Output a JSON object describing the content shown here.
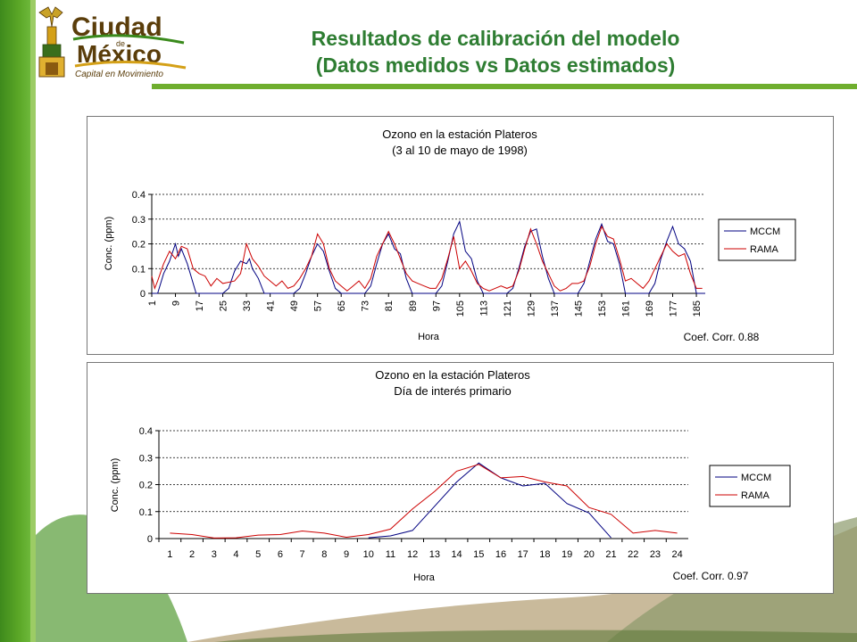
{
  "slide": {
    "title_line1": "Resultados de calibración del modelo",
    "title_line2": "(Datos medidos vs Datos estimados)",
    "logo": {
      "line1": "Ciudad",
      "line2": "de",
      "line3": "México",
      "tagline": "Capital en Movimiento"
    }
  },
  "colors": {
    "mccm": "#000080",
    "rama": "#cc0000",
    "title": "#2e7d32",
    "green": "#5aa626"
  },
  "chart_data": [
    {
      "type": "line",
      "title": "Ozono en la estación Plateros",
      "subtitle": "(3 al 10 de mayo de 1998)",
      "xlabel": "Hora",
      "ylabel": "Conc. (ppm)",
      "ylim": [
        0,
        0.4
      ],
      "yticks": [
        "0",
        "0.1",
        "0.2",
        "0.3",
        "0.4"
      ],
      "xlim": [
        1,
        188
      ],
      "xticks": [
        1,
        9,
        17,
        25,
        33,
        41,
        49,
        57,
        65,
        73,
        81,
        89,
        97,
        105,
        113,
        121,
        129,
        137,
        145,
        153,
        161,
        169,
        177,
        185
      ],
      "annotation": "Coef. Corr. 0.88",
      "legend_position": "right",
      "series": [
        {
          "name": "MCCM",
          "x": [
            1,
            3,
            5,
            7,
            9,
            10,
            11,
            12,
            13,
            16,
            18,
            25,
            27,
            29,
            31,
            33,
            34,
            35,
            37,
            39,
            41,
            49,
            51,
            53,
            55,
            57,
            59,
            61,
            63,
            65,
            73,
            75,
            77,
            79,
            81,
            83,
            85,
            87,
            89,
            97,
            99,
            101,
            103,
            105,
            107,
            109,
            111,
            113,
            121,
            123,
            125,
            127,
            129,
            131,
            133,
            135,
            137,
            145,
            147,
            149,
            151,
            153,
            155,
            157,
            159,
            161,
            169,
            171,
            173,
            175,
            177,
            179,
            181,
            183,
            185,
            188
          ],
          "y": [
            0,
            0,
            0.08,
            0.13,
            0.2,
            0.15,
            0.18,
            0.15,
            0.12,
            0,
            0,
            0,
            0.02,
            0.09,
            0.13,
            0.12,
            0.14,
            0.1,
            0.06,
            0,
            0,
            0,
            0.02,
            0.08,
            0.15,
            0.2,
            0.17,
            0.09,
            0.02,
            0,
            0,
            0.03,
            0.12,
            0.2,
            0.24,
            0.18,
            0.16,
            0.06,
            0,
            0,
            0.03,
            0.13,
            0.24,
            0.29,
            0.17,
            0.14,
            0.05,
            0,
            0,
            0.02,
            0.1,
            0.19,
            0.25,
            0.26,
            0.15,
            0.06,
            0,
            0,
            0.04,
            0.13,
            0.22,
            0.28,
            0.21,
            0.2,
            0.12,
            0,
            0,
            0.04,
            0.14,
            0.21,
            0.27,
            0.2,
            0.18,
            0.13,
            0,
            0
          ]
        },
        {
          "name": "RAMA",
          "x": [
            1,
            2,
            3,
            5,
            7,
            9,
            11,
            13,
            15,
            17,
            19,
            21,
            23,
            25,
            29,
            31,
            33,
            35,
            37,
            39,
            41,
            43,
            45,
            47,
            49,
            51,
            53,
            55,
            57,
            59,
            61,
            63,
            65,
            67,
            69,
            71,
            73,
            75,
            77,
            79,
            81,
            83,
            85,
            87,
            89,
            91,
            93,
            95,
            97,
            99,
            101,
            103,
            105,
            107,
            109,
            111,
            113,
            115,
            117,
            119,
            121,
            123,
            125,
            127,
            129,
            131,
            133,
            135,
            137,
            139,
            141,
            143,
            145,
            147,
            149,
            151,
            153,
            155,
            157,
            159,
            161,
            163,
            165,
            167,
            169,
            171,
            173,
            175,
            177,
            179,
            181,
            183,
            185,
            187
          ],
          "y": [
            0.07,
            0.02,
            0.05,
            0.12,
            0.17,
            0.14,
            0.19,
            0.18,
            0.1,
            0.08,
            0.07,
            0.03,
            0.06,
            0.04,
            0.05,
            0.08,
            0.2,
            0.14,
            0.11,
            0.07,
            0.05,
            0.03,
            0.05,
            0.02,
            0.03,
            0.06,
            0.1,
            0.15,
            0.24,
            0.2,
            0.1,
            0.05,
            0.03,
            0.01,
            0.03,
            0.05,
            0.02,
            0.06,
            0.15,
            0.2,
            0.25,
            0.2,
            0.14,
            0.08,
            0.05,
            0.04,
            0.03,
            0.02,
            0.02,
            0.06,
            0.14,
            0.23,
            0.1,
            0.13,
            0.09,
            0.04,
            0.02,
            0.01,
            0.02,
            0.03,
            0.02,
            0.03,
            0.09,
            0.18,
            0.26,
            0.2,
            0.13,
            0.08,
            0.03,
            0.01,
            0.02,
            0.04,
            0.04,
            0.05,
            0.11,
            0.2,
            0.27,
            0.23,
            0.22,
            0.14,
            0.05,
            0.06,
            0.04,
            0.02,
            0.05,
            0.1,
            0.15,
            0.2,
            0.17,
            0.15,
            0.16,
            0.08,
            0.02,
            0.02
          ]
        }
      ]
    },
    {
      "type": "line",
      "title": "Ozono en la estación Plateros",
      "subtitle": "Día de interés primario",
      "xlabel": "Hora",
      "ylabel": "Conc. (ppm)",
      "ylim": [
        0,
        0.4
      ],
      "yticks": [
        "0",
        "0.1",
        "0.2",
        "0.3",
        "0.4"
      ],
      "categories": [
        "1",
        "2",
        "3",
        "4",
        "5",
        "6",
        "7",
        "8",
        "9",
        "10",
        "11",
        "12",
        "13",
        "14",
        "15",
        "16",
        "17",
        "18",
        "19",
        "20",
        "21",
        "22",
        "23",
        "24"
      ],
      "annotation": "Coef. Corr. 0.97",
      "legend_position": "right",
      "series": [
        {
          "name": "MCCM",
          "values": [
            null,
            null,
            null,
            null,
            null,
            null,
            null,
            null,
            null,
            0.003,
            0.01,
            0.03,
            0.12,
            0.21,
            0.28,
            0.225,
            0.195,
            0.205,
            0.13,
            0.095,
            0.003,
            null,
            null,
            null
          ]
        },
        {
          "name": "RAMA",
          "values": [
            0.02,
            0.015,
            0.002,
            0.003,
            0.013,
            0.015,
            0.028,
            0.02,
            0.005,
            0.015,
            0.035,
            0.11,
            0.175,
            0.25,
            0.275,
            0.225,
            0.23,
            0.21,
            0.195,
            0.115,
            0.09,
            0.02,
            0.03,
            0.02
          ]
        }
      ]
    }
  ]
}
